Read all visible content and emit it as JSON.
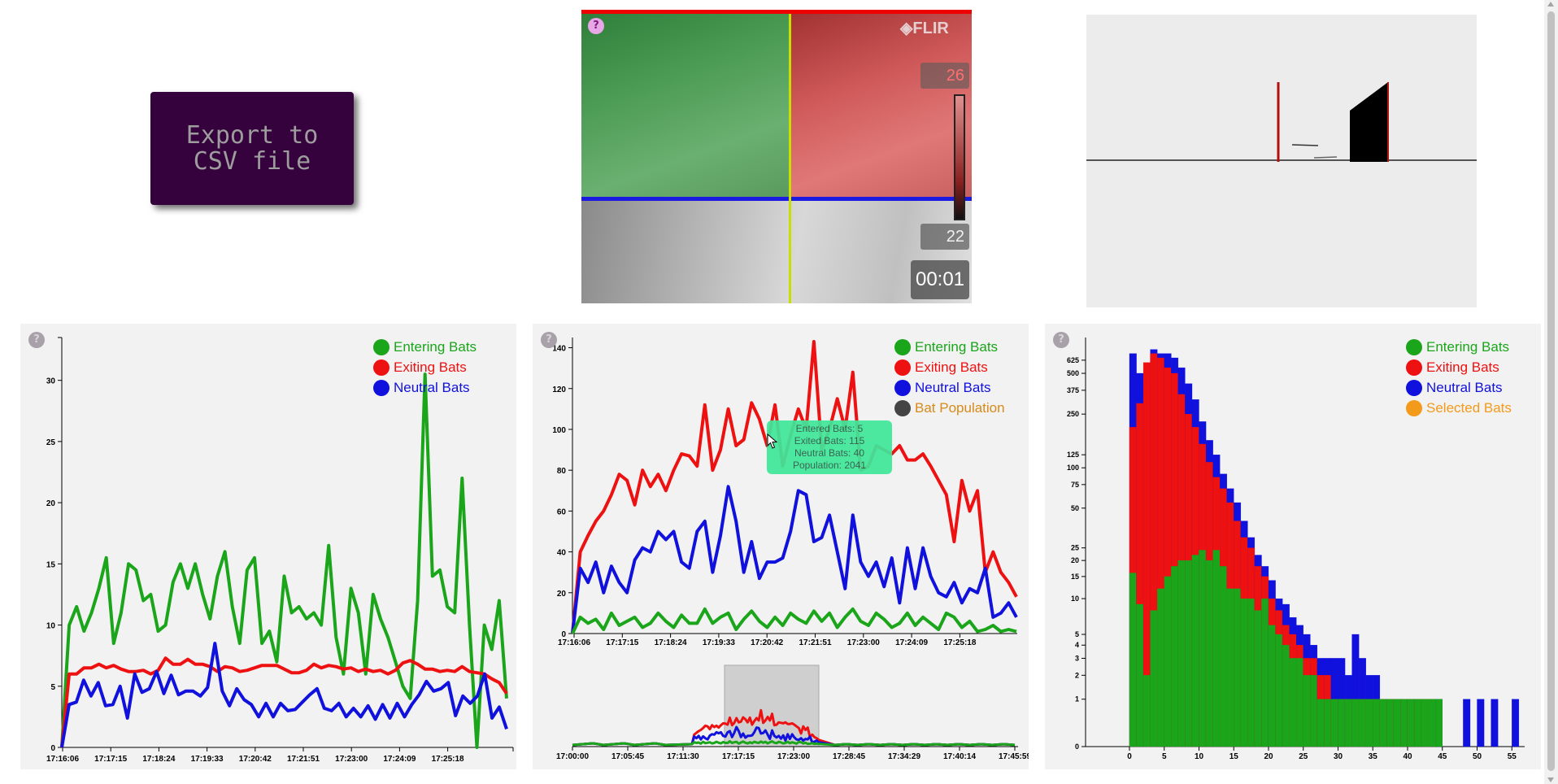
{
  "export_button": {
    "label": "Export to\n CSV file"
  },
  "video": {
    "logo": "FLIR",
    "temp_high": "26",
    "temp_low": "22",
    "timer": "00:01",
    "help_icon": "?"
  },
  "line_chart_left": {
    "help_icon": "?",
    "legend": [
      {
        "label": "Entering Bats",
        "color": "#1aa51a"
      },
      {
        "label": "Exiting Bats",
        "color": "#ee1111"
      },
      {
        "label": "Neutral Bats",
        "color": "#1111dd"
      }
    ],
    "chart_data": {
      "type": "line",
      "x_ticks": [
        "17:16:06",
        "17:17:15",
        "17:18:24",
        "17:19:33",
        "17:20:42",
        "17:21:51",
        "17:23:00",
        "17:24:09",
        "17:25:18"
      ],
      "y_ticks": [
        0,
        5,
        10,
        15,
        20,
        25,
        30
      ],
      "ylim": [
        0,
        33.5
      ],
      "series": [
        {
          "name": "Entering Bats",
          "color": "#1aa51a",
          "values": [
            0,
            10,
            11.5,
            9.5,
            11,
            13,
            15.5,
            8.5,
            11,
            15,
            14.5,
            12,
            12.5,
            9.5,
            10,
            13.5,
            15,
            13,
            15,
            12.5,
            10.5,
            14,
            16,
            11.5,
            8.5,
            14.5,
            15.5,
            8.5,
            9.5,
            7,
            14,
            11,
            11.5,
            10.5,
            11,
            10,
            16.5,
            9,
            6,
            13,
            11,
            6,
            12.5,
            10.5,
            9,
            7,
            5,
            4,
            12,
            30.5,
            14,
            14.5,
            11.5,
            11,
            22,
            10,
            0,
            10,
            8,
            12,
            4
          ]
        },
        {
          "name": "Exiting Bats",
          "color": "#ee1111",
          "values": [
            0,
            6,
            6,
            6.5,
            6.5,
            6.8,
            6.5,
            6.7,
            6.4,
            6.2,
            6.2,
            6.3,
            6,
            6.3,
            7.3,
            6.8,
            6.8,
            7.2,
            6.8,
            6.8,
            6.6,
            6.2,
            6.6,
            6.5,
            6.2,
            6.3,
            6.5,
            6.7,
            6.7,
            6.7,
            6.4,
            6.1,
            6.1,
            6.3,
            6.8,
            6.5,
            6.7,
            6.6,
            6.4,
            6.5,
            6.2,
            6.4,
            6.2,
            6.3,
            6,
            6.3,
            6.9,
            7.1,
            6.8,
            6.4,
            6.4,
            6.2,
            6.3,
            6.2,
            6.6,
            6.2,
            6.1,
            6,
            5.6,
            5.3,
            4.4
          ]
        },
        {
          "name": "Neutral Bats",
          "color": "#1111dd",
          "values": [
            0,
            3.5,
            3.7,
            5.5,
            4.2,
            5.3,
            3.4,
            3.5,
            5,
            2.4,
            6,
            4.5,
            4.8,
            6.2,
            4.4,
            5.9,
            4.3,
            4.6,
            4.6,
            4.2,
            4.9,
            8.5,
            4.6,
            3.4,
            4.8,
            3.9,
            3.5,
            2.5,
            3.6,
            2.5,
            3.6,
            3,
            3.1,
            3.7,
            4.3,
            4.8,
            3.2,
            3,
            3.6,
            2.5,
            3.2,
            2.5,
            3.4,
            2.3,
            3.5,
            2.4,
            3.6,
            2.5,
            3.5,
            4.3,
            5.4,
            4.6,
            4.8,
            5.3,
            2.6,
            4.2,
            3.6,
            4.2,
            6,
            2.4,
            3.3,
            1.5
          ]
        }
      ]
    }
  },
  "line_chart_middle": {
    "help_icon": "?",
    "legend": [
      {
        "label": "Entering Bats",
        "color": "#1aa51a"
      },
      {
        "label": "Exiting Bats",
        "color": "#ee1111"
      },
      {
        "label": "Neutral Bats",
        "color": "#1111dd"
      },
      {
        "label": "Bat Population",
        "color": "#d88a1a",
        "dot_color": "#444444"
      }
    ],
    "tooltip": [
      "Entered Bats: 5",
      "Exited Bats: 115",
      "Neutral Bats: 40",
      "Population: 2041"
    ],
    "chart_data": {
      "type": "line",
      "x_ticks": [
        "17:16:06",
        "17:17:15",
        "17:18:24",
        "17:19:33",
        "17:20:42",
        "17:21:51",
        "17:23:00",
        "17:24:09",
        "17:25:18"
      ],
      "y_ticks": [
        0,
        20,
        40,
        60,
        80,
        100,
        120,
        140
      ],
      "ylim": [
        0,
        145
      ],
      "series": [
        {
          "name": "Exiting Bats",
          "color": "#ee1111",
          "values": [
            0,
            40,
            48,
            55,
            60,
            68,
            78,
            75,
            63,
            80,
            72,
            78,
            70,
            80,
            88,
            87,
            82,
            112,
            80,
            90,
            110,
            92,
            95,
            113,
            105,
            92,
            112,
            82,
            97,
            110,
            100,
            143,
            90,
            100,
            115,
            100,
            128,
            80,
            82,
            92,
            90,
            88,
            92,
            85,
            85,
            88,
            82,
            75,
            68,
            45,
            75,
            60,
            70,
            30,
            40,
            30,
            25,
            18
          ]
        },
        {
          "name": "Neutral Bats",
          "color": "#1111dd",
          "values": [
            0,
            32,
            25,
            35,
            20,
            33,
            25,
            20,
            36,
            42,
            40,
            50,
            46,
            50,
            35,
            32,
            50,
            55,
            30,
            48,
            72,
            55,
            30,
            45,
            27,
            35,
            35,
            37,
            50,
            70,
            68,
            45,
            47,
            58,
            40,
            22,
            58,
            35,
            28,
            35,
            23,
            37,
            15,
            42,
            22,
            42,
            28,
            20,
            18,
            25,
            15,
            22,
            20,
            32,
            8,
            10,
            15,
            8
          ]
        },
        {
          "name": "Entering Bats",
          "color": "#1aa51a",
          "values": [
            0,
            8,
            5,
            7,
            2,
            10,
            4,
            6,
            8,
            3,
            5,
            10,
            6,
            3,
            9,
            5,
            5,
            12,
            5,
            8,
            10,
            2,
            7,
            11,
            6,
            3,
            8,
            4,
            10,
            7,
            5,
            11,
            6,
            10,
            3,
            8,
            12,
            6,
            4,
            10,
            7,
            3,
            5,
            10,
            4,
            8,
            5,
            2,
            10,
            8,
            3,
            6,
            1,
            2,
            4,
            1,
            2,
            1
          ]
        }
      ]
    },
    "overview_x_ticks": [
      "17:00:00",
      "17:05:45",
      "17:11:30",
      "17:17:15",
      "17:23:00",
      "17:28:45",
      "17:34:29",
      "17:40:14",
      "17:45:59"
    ]
  },
  "histogram": {
    "help_icon": "?",
    "legend": [
      {
        "label": "Entering Bats",
        "color": "#1aa51a"
      },
      {
        "label": "Exiting Bats",
        "color": "#ee1111"
      },
      {
        "label": "Neutral Bats",
        "color": "#1111dd"
      },
      {
        "label": "Selected Bats",
        "color": "#f39a1a"
      }
    ],
    "chart_data": {
      "type": "bar",
      "y_scale": "log",
      "x_ticks": [
        0,
        5,
        10,
        15,
        20,
        25,
        30,
        35,
        40,
        45,
        50,
        55
      ],
      "y_ticks": [
        "625",
        "500",
        "375",
        "250",
        "125",
        "100",
        "75",
        "50",
        "25",
        "20",
        "15",
        "10",
        "5",
        "4",
        "3",
        "2",
        "1",
        "0"
      ],
      "bins": [
        1,
        2,
        3,
        4,
        5,
        6,
        7,
        8,
        9,
        10,
        11,
        12,
        13,
        14,
        15,
        16,
        17,
        18,
        19,
        20,
        21,
        22,
        23,
        24,
        25,
        26,
        27,
        28,
        29,
        30,
        31,
        32,
        33,
        34,
        35,
        36,
        37,
        38,
        39,
        40,
        41,
        42,
        43,
        44,
        45,
        46,
        47,
        48,
        49,
        50,
        51,
        52,
        53,
        54,
        55,
        56
      ],
      "series": [
        {
          "name": "Entering Bats",
          "color": "#1aa51a",
          "values": [
            16,
            9,
            2,
            8,
            12,
            15,
            18,
            20,
            20,
            22,
            24,
            20,
            24,
            18,
            12,
            12,
            10,
            10,
            8,
            10,
            6,
            5,
            4,
            3,
            3,
            2,
            2,
            1,
            1,
            1,
            1,
            1,
            1,
            1,
            1,
            1,
            1,
            1,
            1,
            1,
            1,
            1,
            1,
            1,
            1,
            0,
            0,
            0,
            0,
            0,
            0,
            0,
            0,
            0,
            0,
            0
          ]
        },
        {
          "name": "Exiting Bats",
          "color": "#ee1111",
          "values": [
            200,
            300,
            600,
            700,
            650,
            550,
            500,
            350,
            250,
            200,
            150,
            110,
            85,
            70,
            55,
            40,
            30,
            25,
            18,
            15,
            10,
            8,
            6,
            5,
            4,
            3,
            3,
            2,
            2,
            1,
            1,
            1,
            1,
            1,
            1,
            1,
            1,
            1,
            1,
            1,
            1,
            1,
            1,
            1,
            0,
            0,
            0,
            0,
            0,
            0,
            0,
            0,
            0,
            0,
            0,
            0
          ]
        },
        {
          "name": "Neutral Bats",
          "color": "#1111dd",
          "values": [
            700,
            500,
            450,
            750,
            700,
            700,
            650,
            550,
            420,
            320,
            220,
            160,
            125,
            90,
            70,
            55,
            40,
            30,
            22,
            18,
            14,
            10,
            9,
            7,
            6,
            5,
            4,
            3,
            3,
            3,
            3,
            2,
            5,
            3,
            2,
            2,
            1,
            1,
            1,
            1,
            1,
            1,
            1,
            1,
            1,
            0,
            0,
            0,
            1,
            0,
            1,
            0,
            1,
            0,
            0,
            1
          ]
        }
      ]
    }
  }
}
